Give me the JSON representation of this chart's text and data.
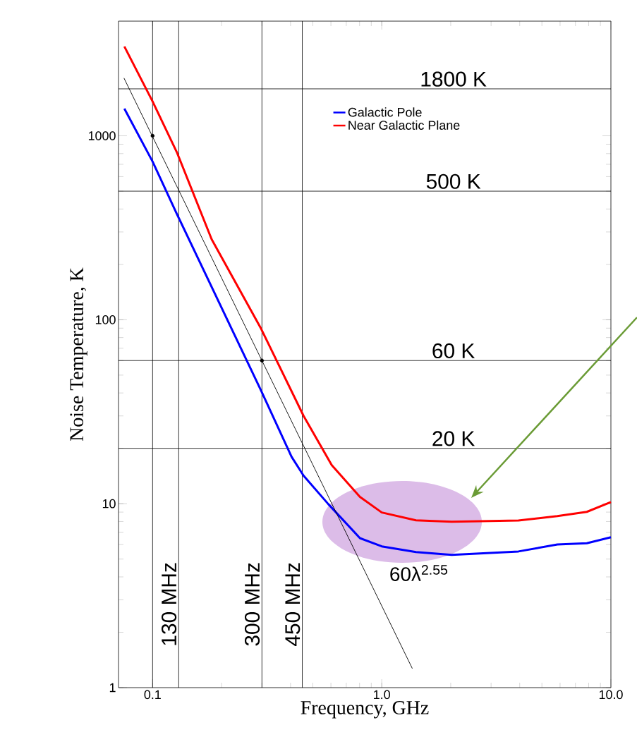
{
  "chart_data": {
    "type": "line",
    "xlabel": "Frequency, GHz",
    "ylabel": "Noise Temperature, K",
    "log": "xy",
    "xlim": [
      0.071,
      10
    ],
    "ylim": [
      1,
      4200
    ],
    "xticks": [
      0.1,
      {
        "value": 1,
        "label": "1.0"
      },
      {
        "value": 10,
        "label": "10.0"
      }
    ],
    "yticks": [
      1,
      10,
      100,
      1000
    ],
    "legend": "top right",
    "series": [
      {
        "name": "Galactic Pole",
        "color": "#0000ff",
        "x": [
          0.0753,
          0.1,
          0.128,
          0.298,
          0.404,
          0.456,
          0.584,
          0.803,
          1.0,
          1.41,
          2.02,
          3.95,
          5.84,
          7.85,
          10
        ],
        "values": [
          1406,
          724,
          373,
          41,
          18,
          14.2,
          9.96,
          6.5,
          5.86,
          5.46,
          5.27,
          5.5,
          6.0,
          6.1,
          6.57
        ]
      },
      {
        "name": "Near Galactic Plane",
        "color": "#ff0000",
        "x": [
          0.0753,
          0.1,
          0.128,
          0.181,
          0.298,
          0.456,
          0.605,
          0.803,
          1.0,
          1.41,
          2.02,
          3.95,
          5.84,
          7.85,
          10
        ],
        "values": [
          3060,
          1536,
          806,
          274,
          89,
          30,
          16.2,
          10.9,
          8.96,
          8.12,
          7.98,
          8.1,
          8.57,
          9.03,
          10.2
        ]
      },
      {
        "type": "line",
        "color": "#000000",
        "x": [
          0.075,
          1.36
        ],
        "values": [
          2060,
          1.27
        ]
      },
      {
        "type": "scatter",
        "marker": "circle",
        "color": "#000000",
        "x": [
          0.1,
          0.3
        ],
        "values": [
          1000,
          60
        ]
      }
    ],
    "ref_lines": [
      {
        "axis": "y",
        "value": 1800,
        "label": "1800 K"
      },
      {
        "axis": "y",
        "value": 500,
        "label": "500 K"
      },
      {
        "axis": "y",
        "value": 60,
        "label": "60 K"
      },
      {
        "axis": "y",
        "value": 20,
        "label": "20 K"
      },
      {
        "axis": "x",
        "value": 0.1
      },
      {
        "axis": "x",
        "value": 0.13,
        "label": "130 MHz"
      },
      {
        "axis": "x",
        "value": 0.3,
        "label": "300 MHz"
      },
      {
        "axis": "x",
        "value": 0.45,
        "label": "450 MHz"
      }
    ],
    "annotations": [
      "60λ$^{2.55}$"
    ]
  }
}
